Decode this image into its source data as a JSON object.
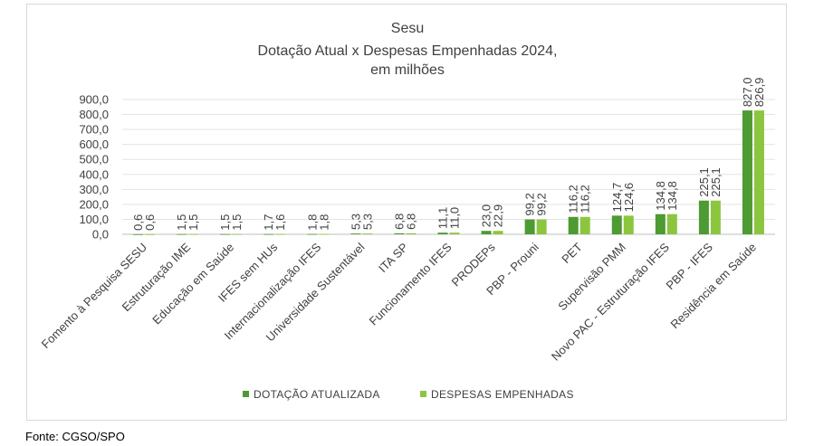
{
  "chart_data": {
    "type": "bar",
    "title_lines": [
      "Sesu",
      "Dotação Atual x Despesas Empenhadas 2024,",
      "em milhões"
    ],
    "categories": [
      "Fomento à Pesquisa SESU",
      "Estruturação IME",
      "Educação em Saúde",
      "IFES sem HUs",
      "Internacionalização IFES",
      "Universidade Sustentável",
      "ITA SP",
      "Funcionamento IFES",
      "PRODEPs",
      "PBP - Prouni",
      "PET",
      "Supervisão  PMM",
      "Novo PAC - Estruturação IFES",
      "PBP - IFES",
      "Residência em Saúde"
    ],
    "series": [
      {
        "name": "DOTAÇÃO ATUALIZADA",
        "color": "#4e9a33",
        "values": [
          0.6,
          1.5,
          1.5,
          1.7,
          1.8,
          5.3,
          6.8,
          11.1,
          23.0,
          99.2,
          116.2,
          124.7,
          134.8,
          225.1,
          827.0
        ],
        "labels": [
          "0,6",
          "1,5",
          "1,5",
          "1,7",
          "1,8",
          "5,3",
          "6,8",
          "11,1",
          "23,0",
          "99,2",
          "116,2",
          "124,7",
          "134,8",
          "225,1",
          "827,0"
        ]
      },
      {
        "name": "DESPESAS EMPENHADAS",
        "color": "#8cc63f",
        "values": [
          0.6,
          1.5,
          1.5,
          1.6,
          1.8,
          5.3,
          6.8,
          11.0,
          22.9,
          99.2,
          116.2,
          124.6,
          134.8,
          225.1,
          826.9
        ],
        "labels": [
          "0,6",
          "1,5",
          "1,5",
          "1,6",
          "1,8",
          "5,3",
          "6,8",
          "11,0",
          "22,9",
          "99,2",
          "116,2",
          "124,6",
          "134,8",
          "225,1",
          "826,9"
        ]
      }
    ],
    "ylim": [
      0,
      900
    ],
    "yticks": [
      "0,0",
      "100,0",
      "200,0",
      "300,0",
      "400,0",
      "500,0",
      "600,0",
      "700,0",
      "800,0",
      "900,0"
    ],
    "grid": true,
    "legend_position": "bottom",
    "xlabel": "",
    "ylabel": ""
  },
  "source": "Fonte: CGSO/SPO"
}
